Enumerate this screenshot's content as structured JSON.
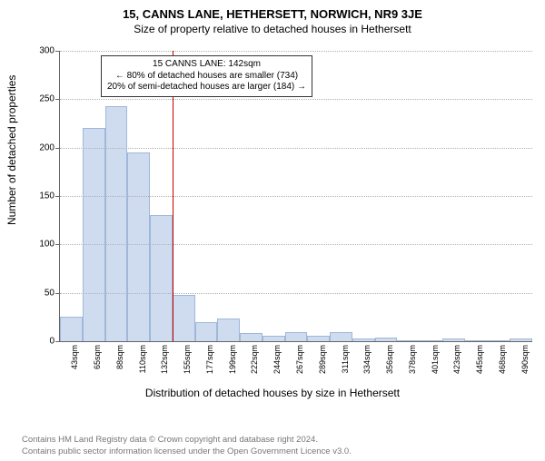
{
  "title_main": "15, CANNS LANE, HETHERSETT, NORWICH, NR9 3JE",
  "title_sub": "Size of property relative to detached houses in Hethersett",
  "y_axis_label": "Number of detached properties",
  "x_axis_label": "Distribution of detached houses by size in Hethersett",
  "chart": {
    "type": "histogram",
    "ymax": 300,
    "ytick_step": 50,
    "yticks": [
      0,
      50,
      100,
      150,
      200,
      250,
      300
    ],
    "bars": [
      25,
      220,
      243,
      195,
      130,
      48,
      20,
      23,
      8,
      6,
      9,
      6,
      9,
      3,
      4,
      0,
      0,
      3,
      0,
      0,
      3
    ],
    "bar_fill": "#cfdcef",
    "bar_stroke": "#9fb7d9",
    "grid_color": "#b0b0b0",
    "axis_color": "#666666",
    "xticks": [
      "43sqm",
      "65sqm",
      "88sqm",
      "110sqm",
      "132sqm",
      "155sqm",
      "177sqm",
      "199sqm",
      "222sqm",
      "244sqm",
      "267sqm",
      "289sqm",
      "311sqm",
      "334sqm",
      "356sqm",
      "378sqm",
      "401sqm",
      "423sqm",
      "445sqm",
      "468sqm",
      "490sqm"
    ],
    "reference_line": {
      "color": "#cc0000",
      "bin_right_edge_index": 5
    }
  },
  "annotation": {
    "line1": "15 CANNS LANE: 142sqm",
    "line2": "← 80% of detached houses are smaller (734)",
    "line3": "20% of semi-detached houses are larger (184) →"
  },
  "footer_line1": "Contains HM Land Registry data © Crown copyright and database right 2024.",
  "footer_line2": "Contains public sector information licensed under the Open Government Licence v3.0."
}
